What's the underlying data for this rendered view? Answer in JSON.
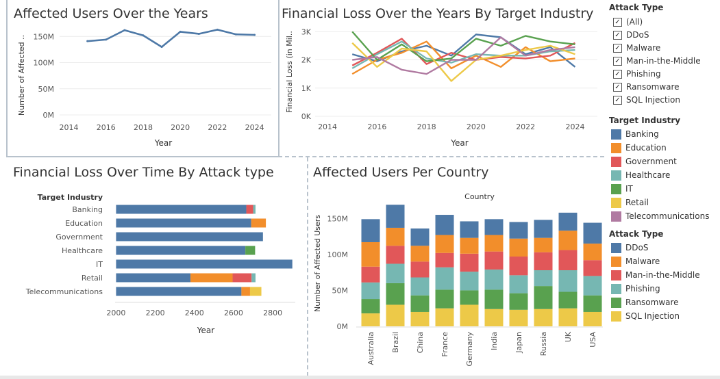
{
  "colors": {
    "Banking": "#4e79a7",
    "Education": "#f28e2b",
    "Government": "#e15759",
    "Healthcare": "#76b7b2",
    "IT": "#59a14f",
    "Retail": "#edc948",
    "Telecommunications": "#b07aa1",
    "DDoS": "#4e79a7",
    "Malware": "#f28e2b",
    "Man-in-the-Middle": "#e15759",
    "Phishing": "#76b7b2",
    "Ransomware": "#59a14f",
    "SQL Injection": "#edc948"
  },
  "charts": {
    "users_years": {
      "title": "Affected Users Over the Years",
      "xlabel": "Year",
      "ylabel": "Number of Affected ..",
      "xticks": [
        "2014",
        "2016",
        "2018",
        "2020",
        "2022",
        "2024"
      ],
      "yticks": [
        "0M",
        "50M",
        "100M",
        "150M"
      ]
    },
    "loss_years": {
      "title": "Financial Loss Over the Years By Target Industry",
      "xlabel": "Year",
      "ylabel": "Financial Loss (in Mil..",
      "xticks": [
        "2014",
        "2016",
        "2018",
        "2020",
        "2022",
        "2024"
      ],
      "yticks": [
        "0K",
        "1K",
        "2K",
        "3K"
      ]
    },
    "loss_attack": {
      "title": "Financial Loss Over Time By Attack type",
      "header": "Target Industry",
      "xlabel": "Year",
      "xticks": [
        "2000",
        "2200",
        "2400",
        "2600",
        "2800"
      ]
    },
    "users_country": {
      "title": "Affected Users Per Country",
      "header": "Country",
      "ylabel": "Number of Affected Users",
      "yticks": [
        "0M",
        "50M",
        "100M",
        "150M"
      ]
    }
  },
  "chart_data": [
    {
      "type": "line",
      "title": "Affected Users Over the Years",
      "xlabel": "Year",
      "ylabel": "Number of Affected ..",
      "x": [
        2015,
        2016,
        2017,
        2018,
        2019,
        2020,
        2021,
        2022,
        2023,
        2024
      ],
      "series": [
        {
          "values": [
            141,
            144,
            162,
            152,
            130,
            159,
            155,
            163,
            154,
            153
          ]
        }
      ],
      "xlim": [
        2013.5,
        2024.9
      ],
      "ylim": [
        0,
        170
      ],
      "color": "#4e79a7"
    },
    {
      "type": "line",
      "title": "Financial Loss Over the Years By Target Industry",
      "xlabel": "Year",
      "ylabel": "Financial Loss (in Mil..",
      "x": [
        2015,
        2016,
        2017,
        2018,
        2019,
        2020,
        2021,
        2022,
        2023,
        2024
      ],
      "series": [
        {
          "name": "Banking",
          "values": [
            2200,
            1950,
            2300,
            2500,
            2150,
            2900,
            2800,
            2200,
            2450,
            1750
          ]
        },
        {
          "name": "Education",
          "values": [
            1500,
            2000,
            2250,
            2650,
            1700,
            2150,
            1750,
            2450,
            1950,
            2050
          ]
        },
        {
          "name": "Government",
          "values": [
            1800,
            2250,
            2750,
            1850,
            2250,
            2000,
            2100,
            2050,
            2150,
            2600
          ]
        },
        {
          "name": "Healthcare",
          "values": [
            1700,
            2200,
            2650,
            2050,
            1900,
            2200,
            2150,
            2150,
            2300,
            2350
          ]
        },
        {
          "name": "IT",
          "values": [
            3000,
            2000,
            2550,
            1950,
            2050,
            2750,
            2500,
            2850,
            2650,
            2550
          ]
        },
        {
          "name": "Retail",
          "values": [
            2600,
            1750,
            2400,
            2300,
            1250,
            2000,
            2150,
            2350,
            2500,
            2200
          ]
        },
        {
          "name": "Telecommunications",
          "values": [
            2000,
            2100,
            1650,
            1500,
            2000,
            2000,
            2800,
            2150,
            2350,
            2450
          ]
        }
      ],
      "xlim": [
        2013.5,
        2024.9
      ],
      "ylim": [
        0,
        3200
      ]
    },
    {
      "type": "bar",
      "title": "Financial Loss Over Time By Attack type",
      "xlabel": "Year",
      "categories": [
        "Banking",
        "Education",
        "Government",
        "Healthcare",
        "IT",
        "Retail",
        "Telecommunications"
      ],
      "xlim": [
        1995,
        2915
      ],
      "segments": [
        [
          [
            "Banking",
            2000,
            2665
          ],
          [
            "Government",
            2665,
            2700
          ],
          [
            "Healthcare",
            2700,
            2712
          ]
        ],
        [
          [
            "Banking",
            2000,
            2690
          ],
          [
            "Education",
            2690,
            2765
          ]
        ],
        [
          [
            "Banking",
            2000,
            2750
          ]
        ],
        [
          [
            "Banking",
            2000,
            2660
          ],
          [
            "IT",
            2660,
            2710
          ]
        ],
        [
          [
            "Banking",
            2000,
            2900
          ]
        ],
        [
          [
            "Banking",
            2000,
            2380
          ],
          [
            "Education",
            2380,
            2595
          ],
          [
            "Government",
            2595,
            2692
          ],
          [
            "Healthcare",
            2692,
            2712
          ]
        ],
        [
          [
            "Banking",
            2000,
            2640
          ],
          [
            "Education",
            2640,
            2684
          ],
          [
            "Retail",
            2684,
            2742
          ]
        ]
      ]
    },
    {
      "type": "bar",
      "stacked": true,
      "title": "Affected Users Per Country",
      "xlabel": "Country",
      "ylabel": "Number of Affected Users",
      "categories": [
        "Australia",
        "Brazil",
        "China",
        "France",
        "Germany",
        "India",
        "Japan",
        "Russia",
        "UK",
        "USA"
      ],
      "ylim": [
        0,
        175
      ],
      "series": [
        {
          "name": "SQL Injection",
          "values": [
            18,
            30,
            20,
            25,
            30,
            24,
            23,
            24,
            25,
            20
          ]
        },
        {
          "name": "Ransomware",
          "values": [
            20,
            30,
            23,
            26,
            20,
            27,
            23,
            32,
            23,
            23
          ]
        },
        {
          "name": "Phishing",
          "values": [
            23,
            27,
            25,
            31,
            26,
            28,
            25,
            22,
            30,
            27
          ]
        },
        {
          "name": "Man-in-the-Middle",
          "values": [
            22,
            25,
            22,
            20,
            25,
            25,
            26,
            25,
            28,
            22
          ]
        },
        {
          "name": "Malware",
          "values": [
            34,
            25,
            22,
            25,
            22,
            23,
            25,
            20,
            27,
            23
          ]
        },
        {
          "name": "DDoS",
          "values": [
            32,
            32,
            24,
            28,
            23,
            22,
            23,
            25,
            25,
            29
          ]
        }
      ]
    }
  ],
  "legends": {
    "attack_filter": {
      "title": "Attack Type",
      "check_mark": "✓",
      "items": [
        "(All)",
        "DDoS",
        "Malware",
        "Man-in-the-Middle",
        "Phishing",
        "Ransomware",
        "SQL Injection"
      ]
    },
    "industry": {
      "title": "Target Industry",
      "items": [
        "Banking",
        "Education",
        "Government",
        "Healthcare",
        "IT",
        "Retail",
        "Telecommunications"
      ]
    },
    "attack_type": {
      "title": "Attack Type",
      "items": [
        "DDoS",
        "Malware",
        "Man-in-the-Middle",
        "Phishing",
        "Ransomware",
        "SQL Injection"
      ]
    }
  }
}
